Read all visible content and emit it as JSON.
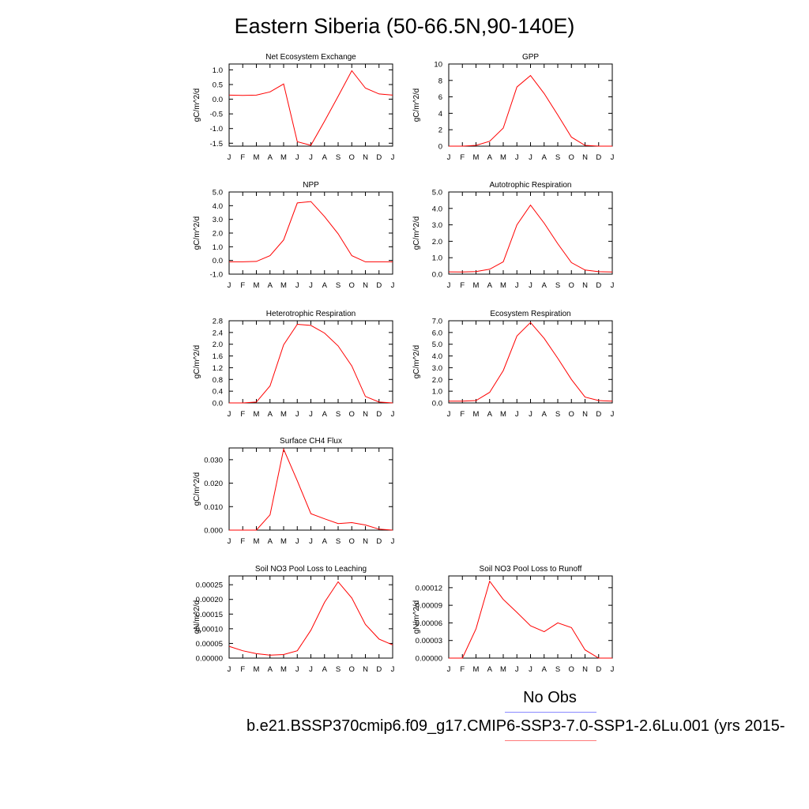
{
  "title": "Eastern Siberia (50-66.5N,90-140E)",
  "legend": {
    "obs_label": "No Obs",
    "case_label": "b.e21.BSSP370cmip6.f09_g17.CMIP6-SSP3-7.0-SSP1-2.6Lu.001 (yrs 2015-",
    "obs_color": "#6f6fff",
    "case_color": "#ff0000"
  },
  "chart_data": [
    {
      "type": "line",
      "title": "Net Ecosystem Exchange",
      "ylabel": "gC/m^2/d",
      "xlabel": "",
      "categories": [
        "J",
        "F",
        "M",
        "A",
        "M",
        "J",
        "J",
        "A",
        "S",
        "O",
        "N",
        "D",
        "J"
      ],
      "ylim": [
        -1.6,
        1.2
      ],
      "yticks": [
        -1.5,
        -1.0,
        -0.5,
        0.0,
        0.5,
        1.0
      ],
      "ytick_labels": [
        "-1.5",
        "-1.0",
        "-0.5",
        "0.0",
        "0.5",
        "1.0"
      ],
      "series": [
        {
          "values": [
            0.14,
            0.13,
            0.14,
            0.25,
            0.52,
            -1.45,
            -1.57,
            -0.75,
            0.1,
            0.97,
            0.38,
            0.18,
            0.14
          ],
          "color": "#ff0000"
        }
      ]
    },
    {
      "type": "line",
      "title": "GPP",
      "ylabel": "gC/m^2/d",
      "xlabel": "",
      "categories": [
        "J",
        "F",
        "M",
        "A",
        "M",
        "J",
        "J",
        "A",
        "S",
        "O",
        "N",
        "D",
        "J"
      ],
      "ylim": [
        0,
        10
      ],
      "yticks": [
        0,
        2,
        4,
        6,
        8,
        10
      ],
      "ytick_labels": [
        "0",
        "2",
        "4",
        "6",
        "8",
        "10"
      ],
      "series": [
        {
          "values": [
            0.0,
            0.0,
            0.1,
            0.6,
            2.2,
            7.2,
            8.6,
            6.4,
            3.8,
            1.1,
            0.1,
            0.0,
            0.0
          ],
          "color": "#ff0000"
        }
      ]
    },
    {
      "type": "line",
      "title": "NPP",
      "ylabel": "gC/m^2/d",
      "xlabel": "",
      "categories": [
        "J",
        "F",
        "M",
        "A",
        "M",
        "J",
        "J",
        "A",
        "S",
        "O",
        "N",
        "D",
        "J"
      ],
      "ylim": [
        -1.0,
        5.0
      ],
      "yticks": [
        -1.0,
        0.0,
        1.0,
        2.0,
        3.0,
        4.0,
        5.0
      ],
      "ytick_labels": [
        "-1.0",
        "0.0",
        "1.0",
        "2.0",
        "3.0",
        "4.0",
        "5.0"
      ],
      "series": [
        {
          "values": [
            -0.1,
            -0.1,
            -0.07,
            0.35,
            1.5,
            4.2,
            4.3,
            3.2,
            1.95,
            0.35,
            -0.1,
            -0.1,
            -0.1
          ],
          "color": "#ff0000"
        }
      ]
    },
    {
      "type": "line",
      "title": "Autotrophic Respiration",
      "ylabel": "gC/m^2/d",
      "xlabel": "",
      "categories": [
        "J",
        "F",
        "M",
        "A",
        "M",
        "J",
        "J",
        "A",
        "S",
        "O",
        "N",
        "D",
        "J"
      ],
      "ylim": [
        0,
        5.0
      ],
      "yticks": [
        0.0,
        1.0,
        2.0,
        3.0,
        4.0,
        5.0
      ],
      "ytick_labels": [
        "0.0",
        "1.0",
        "2.0",
        "3.0",
        "4.0",
        "5.0"
      ],
      "series": [
        {
          "values": [
            0.14,
            0.13,
            0.16,
            0.3,
            0.75,
            3.0,
            4.2,
            3.1,
            1.85,
            0.7,
            0.25,
            0.15,
            0.13
          ],
          "color": "#ff0000"
        }
      ]
    },
    {
      "type": "line",
      "title": "Heterotrophic Respiration",
      "ylabel": "gC/m^2/d",
      "xlabel": "",
      "categories": [
        "J",
        "F",
        "M",
        "A",
        "M",
        "J",
        "J",
        "A",
        "S",
        "O",
        "N",
        "D",
        "J"
      ],
      "ylim": [
        0,
        2.8
      ],
      "yticks": [
        0.0,
        0.4,
        0.8,
        1.2,
        1.6,
        2.0,
        2.4,
        2.8
      ],
      "ytick_labels": [
        "0.0",
        "0.4",
        "0.8",
        "1.2",
        "1.6",
        "2.0",
        "2.4",
        "2.8"
      ],
      "series": [
        {
          "values": [
            0.0,
            0.0,
            0.03,
            0.58,
            1.98,
            2.68,
            2.64,
            2.38,
            1.94,
            1.26,
            0.22,
            0.03,
            0.0
          ],
          "color": "#ff0000"
        }
      ]
    },
    {
      "type": "line",
      "title": "Ecosystem Respiration",
      "ylabel": "gC/m^2/d",
      "xlabel": "",
      "categories": [
        "J",
        "F",
        "M",
        "A",
        "M",
        "J",
        "J",
        "A",
        "S",
        "O",
        "N",
        "D",
        "J"
      ],
      "ylim": [
        0,
        7.0
      ],
      "yticks": [
        0.0,
        1.0,
        2.0,
        3.0,
        4.0,
        5.0,
        6.0,
        7.0
      ],
      "ytick_labels": [
        "0.0",
        "1.0",
        "2.0",
        "3.0",
        "4.0",
        "5.0",
        "6.0",
        "7.0"
      ],
      "series": [
        {
          "values": [
            0.15,
            0.15,
            0.2,
            0.9,
            2.75,
            5.7,
            6.85,
            5.5,
            3.8,
            2.0,
            0.5,
            0.2,
            0.15
          ],
          "color": "#ff0000"
        }
      ]
    },
    {
      "type": "line",
      "title": "Surface CH4 Flux",
      "ylabel": "gC/m^2/d",
      "xlabel": "",
      "categories": [
        "J",
        "F",
        "M",
        "A",
        "M",
        "J",
        "J",
        "A",
        "S",
        "O",
        "N",
        "D",
        "J"
      ],
      "ylim": [
        0,
        0.035
      ],
      "yticks": [
        0.0,
        0.01,
        0.02,
        0.03
      ],
      "ytick_labels": [
        "0.000",
        "0.010",
        "0.020",
        "0.030"
      ],
      "series": [
        {
          "values": [
            0.0,
            0.0,
            0.0,
            0.0065,
            0.0345,
            0.021,
            0.007,
            0.0048,
            0.0028,
            0.0032,
            0.0022,
            0.0004,
            0.0
          ],
          "color": "#ff0000"
        }
      ]
    },
    {
      "type": "line",
      "title": "Soil NO3 Pool Loss to Leaching",
      "ylabel": "gN/m^2/d",
      "xlabel": "",
      "categories": [
        "J",
        "F",
        "M",
        "A",
        "M",
        "J",
        "J",
        "A",
        "S",
        "O",
        "N",
        "D",
        "J"
      ],
      "ylim": [
        0,
        0.00028
      ],
      "yticks": [
        0.0,
        5e-05,
        0.0001,
        0.00015,
        0.0002,
        0.00025
      ],
      "ytick_labels": [
        "0.00000",
        "0.00005",
        "0.00010",
        "0.00015",
        "0.00020",
        "0.00025"
      ],
      "series": [
        {
          "values": [
            4e-05,
            2.5e-05,
            1.5e-05,
            1e-05,
            1.2e-05,
            2.5e-05,
            9.5e-05,
            0.00019,
            0.00026,
            0.000205,
            0.000115,
            6.5e-05,
            4.5e-05
          ],
          "color": "#ff0000"
        }
      ]
    },
    {
      "type": "line",
      "title": "Soil NO3 Pool Loss to Runoff",
      "ylabel": "gN/m^2/d",
      "xlabel": "",
      "categories": [
        "J",
        "F",
        "M",
        "A",
        "M",
        "J",
        "J",
        "A",
        "S",
        "O",
        "N",
        "D",
        "J"
      ],
      "ylim": [
        0,
        0.00014
      ],
      "yticks": [
        0.0,
        3e-05,
        6e-05,
        9e-05,
        0.00012
      ],
      "ytick_labels": [
        "0.00000",
        "0.00003",
        "0.00006",
        "0.00009",
        "0.00012"
      ],
      "series": [
        {
          "values": [
            0.0,
            0.0,
            5e-05,
            0.000131,
            0.0001,
            7.8e-05,
            5.5e-05,
            4.5e-05,
            6e-05,
            5.2e-05,
            1.4e-05,
            0.0,
            0.0
          ],
          "color": "#ff0000"
        }
      ]
    }
  ]
}
